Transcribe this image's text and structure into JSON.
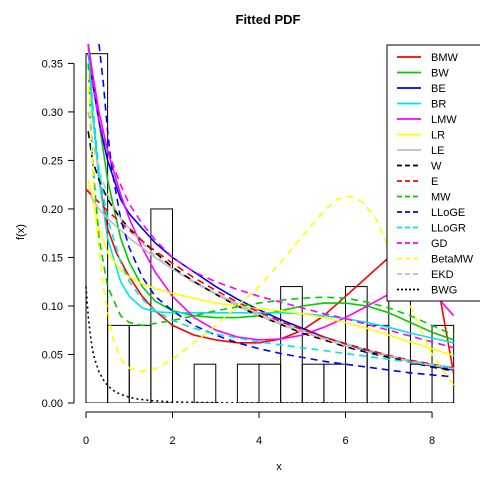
{
  "chart_data": {
    "type": "line",
    "title": "Fitted PDF",
    "xlabel": "x",
    "ylabel": "f(x)",
    "xlim": [
      0,
      8.6
    ],
    "ylim": [
      0,
      0.37
    ],
    "xticks": [
      "0",
      "2",
      "4",
      "6",
      "8"
    ],
    "yticks": [
      "0.00",
      "0.05",
      "0.10",
      "0.15",
      "0.20",
      "0.25",
      "0.30",
      "0.35"
    ],
    "legend_position": "top-right",
    "histogram": {
      "bin_width": 0.5,
      "bins": [
        {
          "x0": 0.0,
          "density": 0.36
        },
        {
          "x0": 0.5,
          "density": 0.08
        },
        {
          "x0": 1.0,
          "density": 0.08
        },
        {
          "x0": 1.5,
          "density": 0.2
        },
        {
          "x0": 2.0,
          "density": 0.0
        },
        {
          "x0": 2.5,
          "density": 0.04
        },
        {
          "x0": 3.0,
          "density": 0.0
        },
        {
          "x0": 3.5,
          "density": 0.04
        },
        {
          "x0": 4.0,
          "density": 0.04
        },
        {
          "x0": 4.5,
          "density": 0.12
        },
        {
          "x0": 5.0,
          "density": 0.04
        },
        {
          "x0": 5.5,
          "density": 0.04
        },
        {
          "x0": 6.0,
          "density": 0.12
        },
        {
          "x0": 6.5,
          "density": 0.08
        },
        {
          "x0": 7.0,
          "density": 0.16
        },
        {
          "x0": 7.5,
          "density": 0.04
        },
        {
          "x0": 8.0,
          "density": 0.08
        }
      ]
    },
    "series": [
      {
        "name": "BMW",
        "color": "#ff0000",
        "dash": "solid",
        "x": [
          0.05,
          0.15,
          0.3,
          0.5,
          0.7,
          1.0,
          1.3,
          1.6,
          2.0,
          2.5,
          3.0,
          3.5,
          4.0,
          4.5,
          5.0,
          5.5,
          6.0,
          6.5,
          7.0,
          7.5,
          7.8,
          8.1,
          8.5
        ],
        "y": [
          0.37,
          0.3,
          0.23,
          0.18,
          0.155,
          0.13,
          0.11,
          0.095,
          0.08,
          0.07,
          0.065,
          0.062,
          0.062,
          0.066,
          0.075,
          0.09,
          0.11,
          0.13,
          0.15,
          0.17,
          0.18,
          0.13,
          0.03
        ]
      },
      {
        "name": "BW",
        "color": "#00cc00",
        "dash": "solid",
        "x": [
          0.05,
          0.15,
          0.3,
          0.5,
          0.8,
          1.0,
          1.3,
          1.6,
          2.0,
          2.5,
          3.0,
          3.5,
          4.0,
          4.5,
          5.0,
          5.5,
          6.0,
          6.5,
          7.0,
          7.5,
          8.0,
          8.5
        ],
        "y": [
          0.37,
          0.34,
          0.29,
          0.23,
          0.17,
          0.145,
          0.12,
          0.105,
          0.095,
          0.09,
          0.088,
          0.088,
          0.09,
          0.095,
          0.1,
          0.103,
          0.103,
          0.1,
          0.093,
          0.083,
          0.073,
          0.065
        ]
      },
      {
        "name": "BE",
        "color": "#0000ff",
        "dash": "solid",
        "x": [
          0.05,
          0.15,
          0.3,
          0.5,
          0.8,
          1.0,
          1.3,
          1.6,
          2.0,
          2.5,
          3.0,
          3.5,
          4.0,
          4.5,
          5.0,
          5.5,
          6.0,
          6.5,
          7.0,
          7.5,
          8.0,
          8.5
        ],
        "y": [
          0.36,
          0.33,
          0.29,
          0.25,
          0.21,
          0.195,
          0.18,
          0.165,
          0.15,
          0.135,
          0.12,
          0.107,
          0.096,
          0.086,
          0.077,
          0.068,
          0.061,
          0.054,
          0.048,
          0.043,
          0.038,
          0.034
        ]
      },
      {
        "name": "BR",
        "color": "#00e5e5",
        "dash": "solid",
        "x": [
          0.05,
          0.15,
          0.3,
          0.5,
          0.8,
          1.0,
          1.3,
          1.6,
          2.0,
          2.5,
          3.0,
          3.5,
          4.0,
          4.5,
          5.0,
          5.5,
          6.0,
          6.5,
          7.0,
          7.5,
          8.0,
          8.5
        ],
        "y": [
          0.37,
          0.3,
          0.23,
          0.17,
          0.125,
          0.11,
          0.098,
          0.094,
          0.093,
          0.093,
          0.093,
          0.093,
          0.093,
          0.093,
          0.092,
          0.09,
          0.087,
          0.083,
          0.078,
          0.072,
          0.067,
          0.062
        ]
      },
      {
        "name": "LMW",
        "color": "#ff00ff",
        "dash": "solid",
        "x": [
          0.05,
          0.15,
          0.3,
          0.5,
          0.8,
          1.0,
          1.3,
          1.6,
          2.0,
          2.5,
          3.0,
          3.5,
          4.0,
          4.5,
          5.0,
          5.5,
          6.0,
          6.5,
          7.0,
          7.5,
          8.0,
          8.5
        ],
        "y": [
          0.37,
          0.34,
          0.3,
          0.26,
          0.215,
          0.19,
          0.16,
          0.135,
          0.11,
          0.088,
          0.075,
          0.068,
          0.065,
          0.066,
          0.07,
          0.078,
          0.088,
          0.1,
          0.112,
          0.12,
          0.115,
          0.09
        ]
      },
      {
        "name": "LR",
        "color": "#ffff00",
        "dash": "solid",
        "x": [
          0.05,
          0.15,
          0.3,
          0.5,
          0.8,
          1.0,
          1.3,
          1.6,
          2.0,
          2.5,
          3.0,
          3.5,
          4.0,
          4.5,
          5.0,
          5.5,
          6.0,
          6.5,
          7.0,
          7.5,
          8.0,
          8.5
        ],
        "y": [
          0.23,
          0.21,
          0.18,
          0.155,
          0.137,
          0.13,
          0.123,
          0.118,
          0.113,
          0.108,
          0.103,
          0.1,
          0.097,
          0.095,
          0.092,
          0.088,
          0.083,
          0.077,
          0.07,
          0.063,
          0.056,
          0.049
        ]
      },
      {
        "name": "LE",
        "color": "#bebebe",
        "dash": "solid",
        "x": [
          0.05,
          0.15,
          0.3,
          0.5,
          0.8,
          1.0,
          1.3,
          1.6,
          2.0,
          2.5,
          3.0,
          3.5,
          4.0,
          4.5,
          5.0,
          5.5,
          6.0,
          6.5,
          7.0,
          7.5,
          8.0,
          8.5
        ],
        "y": [
          0.22,
          0.21,
          0.2,
          0.19,
          0.178,
          0.17,
          0.16,
          0.15,
          0.138,
          0.125,
          0.113,
          0.102,
          0.092,
          0.083,
          0.075,
          0.067,
          0.061,
          0.055,
          0.049,
          0.044,
          0.04,
          0.036
        ]
      },
      {
        "name": "W",
        "color": "#000000",
        "dash": "dashed",
        "x": [
          0.05,
          0.15,
          0.3,
          0.5,
          0.8,
          1.0,
          1.3,
          1.6,
          2.0,
          2.5,
          3.0,
          3.5,
          4.0,
          4.5,
          5.0,
          5.5,
          6.0,
          6.5,
          7.0,
          7.5,
          8.0,
          8.5
        ],
        "y": [
          0.28,
          0.25,
          0.23,
          0.21,
          0.19,
          0.18,
          0.167,
          0.155,
          0.14,
          0.125,
          0.112,
          0.1,
          0.09,
          0.081,
          0.072,
          0.065,
          0.058,
          0.052,
          0.047,
          0.042,
          0.037,
          0.033
        ]
      },
      {
        "name": "E",
        "color": "#ff0000",
        "dash": "dashed",
        "x": [
          0.0,
          0.5,
          1.0,
          1.5,
          2.0,
          2.5,
          3.0,
          3.5,
          4.0,
          4.5,
          5.0,
          5.5,
          6.0,
          6.5,
          7.0,
          7.5,
          8.0,
          8.5
        ],
        "y": [
          0.22,
          0.198,
          0.178,
          0.16,
          0.144,
          0.129,
          0.116,
          0.104,
          0.094,
          0.084,
          0.076,
          0.068,
          0.061,
          0.055,
          0.049,
          0.044,
          0.04,
          0.036
        ]
      },
      {
        "name": "MW",
        "color": "#00cc00",
        "dash": "dashed",
        "x": [
          0.05,
          0.15,
          0.3,
          0.5,
          0.8,
          1.0,
          1.3,
          1.6,
          2.0,
          2.5,
          3.0,
          3.5,
          4.0,
          4.5,
          5.0,
          5.5,
          6.0,
          6.5,
          7.0,
          7.5,
          8.0,
          8.5
        ],
        "y": [
          0.35,
          0.25,
          0.17,
          0.12,
          0.09,
          0.083,
          0.08,
          0.082,
          0.085,
          0.09,
          0.095,
          0.099,
          0.103,
          0.106,
          0.108,
          0.109,
          0.108,
          0.104,
          0.098,
          0.09,
          0.08,
          0.07
        ]
      },
      {
        "name": "LLoGE",
        "color": "#0000ff",
        "dash": "dashed",
        "x": [
          0.3,
          0.4,
          0.5,
          0.6,
          0.8,
          1.0,
          1.3,
          1.6,
          2.0,
          2.5,
          3.0,
          3.5,
          4.0,
          4.5,
          5.0,
          5.5,
          6.0,
          6.5,
          7.0,
          7.5,
          8.0,
          8.5
        ],
        "y": [
          0.37,
          0.33,
          0.28,
          0.24,
          0.19,
          0.16,
          0.13,
          0.11,
          0.095,
          0.08,
          0.07,
          0.062,
          0.056,
          0.051,
          0.047,
          0.043,
          0.04,
          0.037,
          0.034,
          0.031,
          0.029,
          0.027
        ]
      },
      {
        "name": "LLoGR",
        "color": "#00e5e5",
        "dash": "dashed",
        "x": [
          0.05,
          0.15,
          0.3,
          0.5,
          0.8,
          1.0,
          1.3,
          1.6,
          2.0,
          2.5,
          3.0,
          3.5,
          4.0,
          4.5,
          5.0,
          5.5,
          6.0,
          6.5,
          7.0,
          7.5,
          8.0,
          8.5
        ],
        "y": [
          0.37,
          0.31,
          0.24,
          0.19,
          0.145,
          0.125,
          0.107,
          0.095,
          0.085,
          0.077,
          0.071,
          0.067,
          0.063,
          0.06,
          0.057,
          0.054,
          0.051,
          0.048,
          0.045,
          0.042,
          0.039,
          0.037
        ]
      },
      {
        "name": "GD",
        "color": "#ff00ff",
        "dash": "dashed",
        "x": [
          0.05,
          0.15,
          0.3,
          0.5,
          0.8,
          1.0,
          1.3,
          1.6,
          2.0,
          2.5,
          3.0,
          3.5,
          4.0,
          4.5,
          5.0,
          5.5,
          6.0,
          6.5,
          7.0,
          7.5,
          8.0,
          8.5
        ],
        "y": [
          0.37,
          0.33,
          0.29,
          0.26,
          0.225,
          0.205,
          0.185,
          0.168,
          0.15,
          0.135,
          0.125,
          0.117,
          0.11,
          0.104,
          0.098,
          0.092,
          0.087,
          0.081,
          0.075,
          0.069,
          0.063,
          0.057
        ]
      },
      {
        "name": "BetaMW",
        "color": "#ffff00",
        "dash": "dashed",
        "x": [
          0.05,
          0.2,
          0.4,
          0.6,
          0.8,
          1.0,
          1.3,
          1.6,
          2.0,
          2.5,
          3.0,
          3.5,
          4.0,
          4.5,
          5.0,
          5.5,
          5.8,
          6.1,
          6.4,
          6.7,
          7.0,
          7.5,
          8.0,
          8.5
        ],
        "y": [
          0.34,
          0.2,
          0.12,
          0.07,
          0.045,
          0.036,
          0.033,
          0.035,
          0.045,
          0.062,
          0.08,
          0.1,
          0.12,
          0.145,
          0.172,
          0.198,
          0.21,
          0.213,
          0.207,
          0.19,
          0.16,
          0.1,
          0.05,
          0.018
        ]
      },
      {
        "name": "EKD",
        "color": "#bebebe",
        "dash": "dashed",
        "x": [
          0.05,
          0.15,
          0.3,
          0.5,
          0.8,
          1.0,
          1.3,
          1.6,
          2.0,
          2.5,
          3.0,
          3.5,
          4.0,
          4.5,
          5.0,
          5.5,
          6.0,
          6.5,
          7.0,
          7.5,
          8.0,
          8.5
        ],
        "y": [
          0.3,
          0.27,
          0.24,
          0.215,
          0.19,
          0.18,
          0.165,
          0.152,
          0.138,
          0.124,
          0.112,
          0.1,
          0.09,
          0.081,
          0.073,
          0.066,
          0.059,
          0.053,
          0.048,
          0.043,
          0.039,
          0.035
        ]
      },
      {
        "name": "BWG",
        "color": "#000000",
        "dash": "dotted",
        "x": [
          0.0,
          0.05,
          0.1,
          0.15,
          0.2,
          0.3,
          0.4,
          0.5,
          0.6,
          0.7,
          0.8,
          1.0,
          1.2,
          1.5,
          2.0,
          3.0,
          4.0,
          6.0,
          8.5
        ],
        "y": [
          0.12,
          0.09,
          0.07,
          0.055,
          0.045,
          0.032,
          0.024,
          0.018,
          0.014,
          0.011,
          0.009,
          0.006,
          0.004,
          0.0025,
          0.001,
          0.0003,
          0.0001,
          0.0,
          0.0
        ]
      }
    ]
  }
}
